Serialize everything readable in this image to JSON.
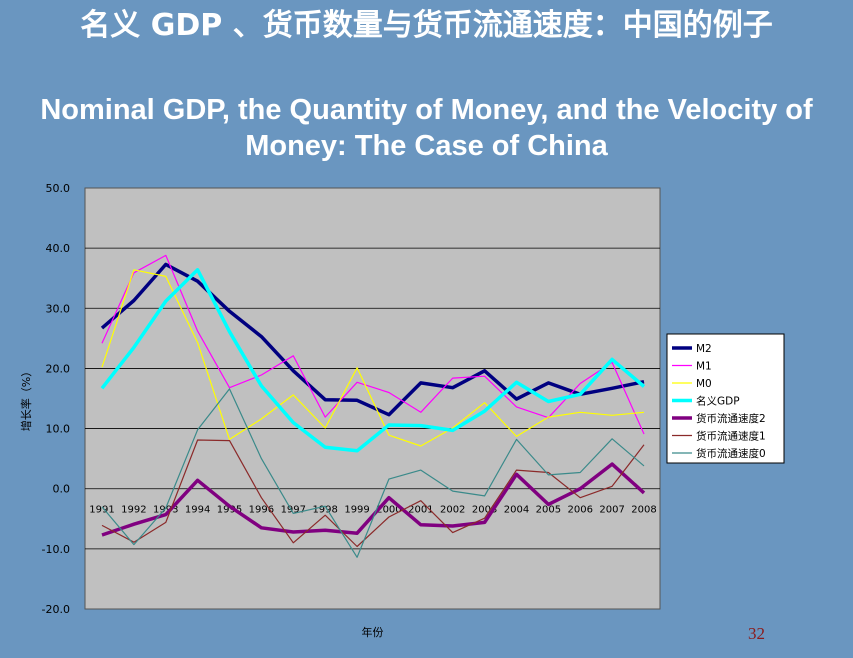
{
  "slide": {
    "title_zh": "名义 GDP 、货币数量与货币流通速度：中国的例子",
    "title_en": "Nominal GDP, the Quantity of Money, and the Velocity of Money: The Case of China",
    "page_number": "32"
  },
  "chart_data": {
    "type": "line",
    "title": "",
    "xlabel": "年份",
    "ylabel": "增长率（%）",
    "ylim": [
      -20,
      50
    ],
    "yticks": [
      "50.0",
      "40.0",
      "30.0",
      "20.0",
      "10.0",
      "0.0",
      "-10.0",
      "-20.0"
    ],
    "ytick_values": [
      50,
      40,
      30,
      20,
      10,
      0,
      -10,
      -20
    ],
    "categories": [
      "1991",
      "1992",
      "1993",
      "1994",
      "1995",
      "1996",
      "1997",
      "1998",
      "1999",
      "2000",
      "2001",
      "2002",
      "2003",
      "2004",
      "2005",
      "2006",
      "2007",
      "2008"
    ],
    "grid": true,
    "legend_position": "right",
    "colors": {
      "plot_background": "#c0c0c0",
      "slide_background": "#6a96c0"
    },
    "series": [
      {
        "name": "M2",
        "color": "#000080",
        "width": "thick",
        "values": [
          26.7,
          31.3,
          37.3,
          34.5,
          29.5,
          25.3,
          19.6,
          14.8,
          14.7,
          12.3,
          17.6,
          16.8,
          19.6,
          14.9,
          17.6,
          15.7,
          16.7,
          17.8
        ]
      },
      {
        "name": "M1",
        "color": "#ff00ff",
        "width": "thin",
        "values": [
          24.2,
          35.9,
          38.8,
          26.2,
          16.8,
          18.9,
          22.1,
          11.9,
          17.7,
          16.0,
          12.7,
          18.4,
          18.7,
          13.6,
          11.8,
          17.5,
          21.0,
          9.1
        ]
      },
      {
        "name": "M0",
        "color": "#ffff00",
        "width": "thin",
        "values": [
          20.2,
          36.4,
          35.3,
          24.3,
          8.2,
          11.6,
          15.6,
          10.1,
          20.1,
          8.9,
          7.1,
          10.1,
          14.3,
          8.7,
          11.9,
          12.7,
          12.2,
          12.7
        ]
      },
      {
        "name": "名义GDP",
        "color": "#00ffff",
        "width": "thick",
        "values": [
          16.7,
          23.5,
          31.2,
          36.4,
          26.1,
          17.1,
          11.0,
          6.9,
          6.3,
          10.6,
          10.5,
          9.7,
          12.9,
          17.7,
          14.5,
          15.7,
          21.5,
          17.0
        ]
      },
      {
        "name": "货币流通速度2",
        "color": "#800080",
        "width": "thick",
        "values": [
          -7.7,
          -5.9,
          -4.3,
          1.4,
          -2.9,
          -6.5,
          -7.2,
          -6.9,
          -7.4,
          -1.5,
          -6.0,
          -6.2,
          -5.6,
          2.4,
          -2.6,
          0.0,
          4.1,
          -0.7
        ]
      },
      {
        "name": "货币流通速度1",
        "color": "#8b2a2a",
        "width": "thin",
        "values": [
          -6.1,
          -8.9,
          -5.6,
          8.1,
          8.0,
          -1.5,
          -9.0,
          -4.4,
          -9.6,
          -4.7,
          -2.0,
          -7.3,
          -4.9,
          3.1,
          2.7,
          -1.5,
          0.4,
          7.3
        ]
      },
      {
        "name": "货币流通速度0",
        "color": "#3a8a8a",
        "width": "thin",
        "values": [
          -3.0,
          -9.3,
          -3.2,
          9.8,
          16.6,
          5.0,
          -4.1,
          -2.9,
          -11.4,
          1.6,
          3.1,
          -0.4,
          -1.2,
          8.2,
          2.3,
          2.7,
          8.3,
          3.8
        ]
      }
    ]
  }
}
